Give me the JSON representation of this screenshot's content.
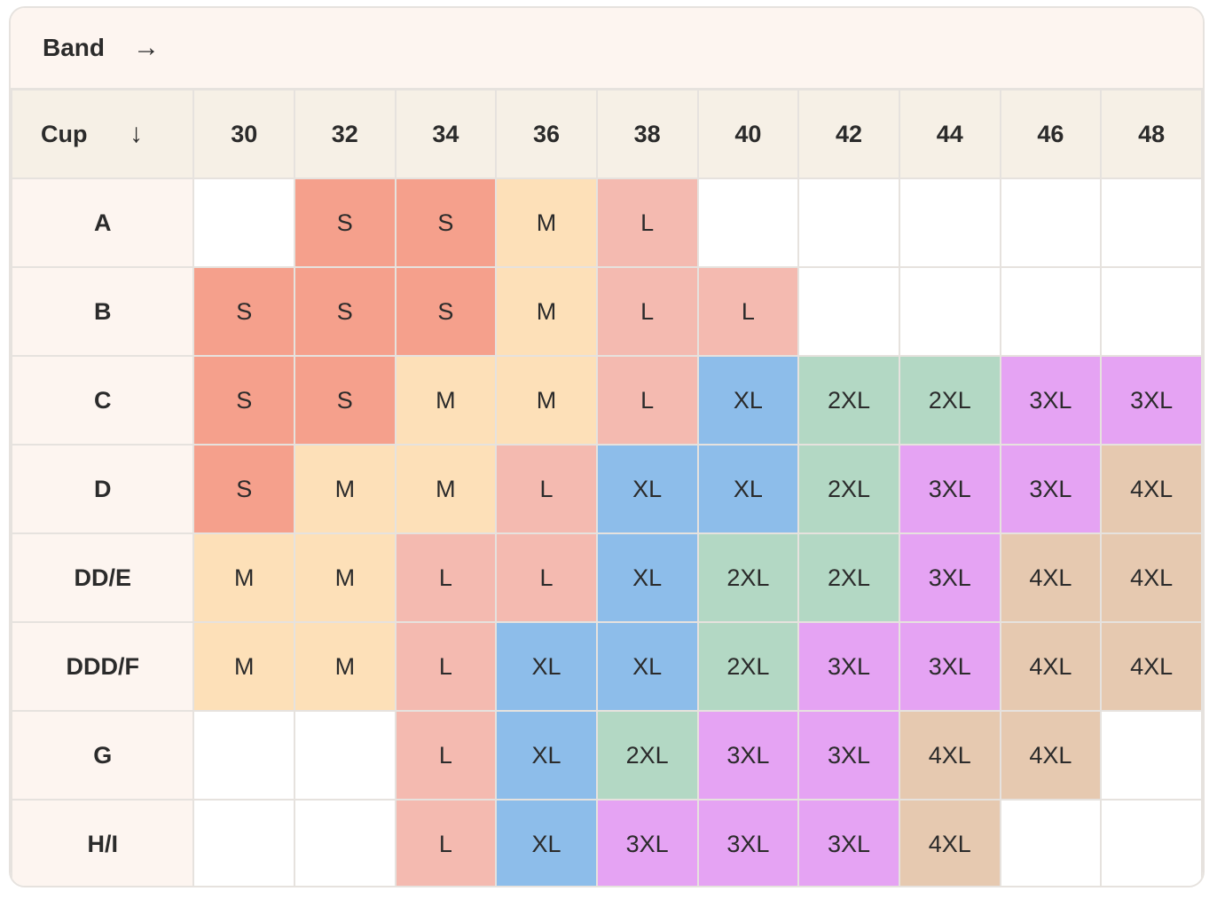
{
  "band_label": "Band",
  "band_arrow": "→",
  "cup_label": "Cup",
  "cup_arrow": "↓",
  "bands": [
    "30",
    "32",
    "34",
    "36",
    "38",
    "40",
    "42",
    "44",
    "46",
    "48"
  ],
  "rows": [
    {
      "cup": "A",
      "sizes": [
        "",
        "S",
        "S",
        "M",
        "L",
        "",
        "",
        "",
        "",
        ""
      ]
    },
    {
      "cup": "B",
      "sizes": [
        "S",
        "S",
        "S",
        "M",
        "L",
        "L",
        "",
        "",
        "",
        ""
      ]
    },
    {
      "cup": "C",
      "sizes": [
        "S",
        "S",
        "M",
        "M",
        "L",
        "XL",
        "2XL",
        "2XL",
        "3XL",
        "3XL"
      ]
    },
    {
      "cup": "D",
      "sizes": [
        "S",
        "M",
        "M",
        "L",
        "XL",
        "XL",
        "2XL",
        "3XL",
        "3XL",
        "4XL"
      ]
    },
    {
      "cup": "DD/E",
      "sizes": [
        "M",
        "M",
        "L",
        "L",
        "XL",
        "2XL",
        "2XL",
        "3XL",
        "4XL",
        "4XL"
      ]
    },
    {
      "cup": "DDD/F",
      "sizes": [
        "M",
        "M",
        "L",
        "XL",
        "XL",
        "2XL",
        "3XL",
        "3XL",
        "4XL",
        "4XL"
      ]
    },
    {
      "cup": "G",
      "sizes": [
        "",
        "",
        "L",
        "XL",
        "2XL",
        "3XL",
        "3XL",
        "4XL",
        "4XL",
        ""
      ]
    },
    {
      "cup": "H/I",
      "sizes": [
        "",
        "",
        "L",
        "XL",
        "3XL",
        "3XL",
        "3XL",
        "4XL",
        "",
        ""
      ]
    }
  ],
  "colors": {
    "S": "#f5a08c",
    "M": "#fde0b8",
    "L": "#f4bab0",
    "XL": "#8dbdea",
    "2XL": "#b3d8c4",
    "3XL": "#e5a3f3",
    "4XL": "#e6c9b0",
    "header_bg": "#fdf5f0",
    "band_row_bg": "#f6f0e6",
    "border": "#e6e2de"
  }
}
